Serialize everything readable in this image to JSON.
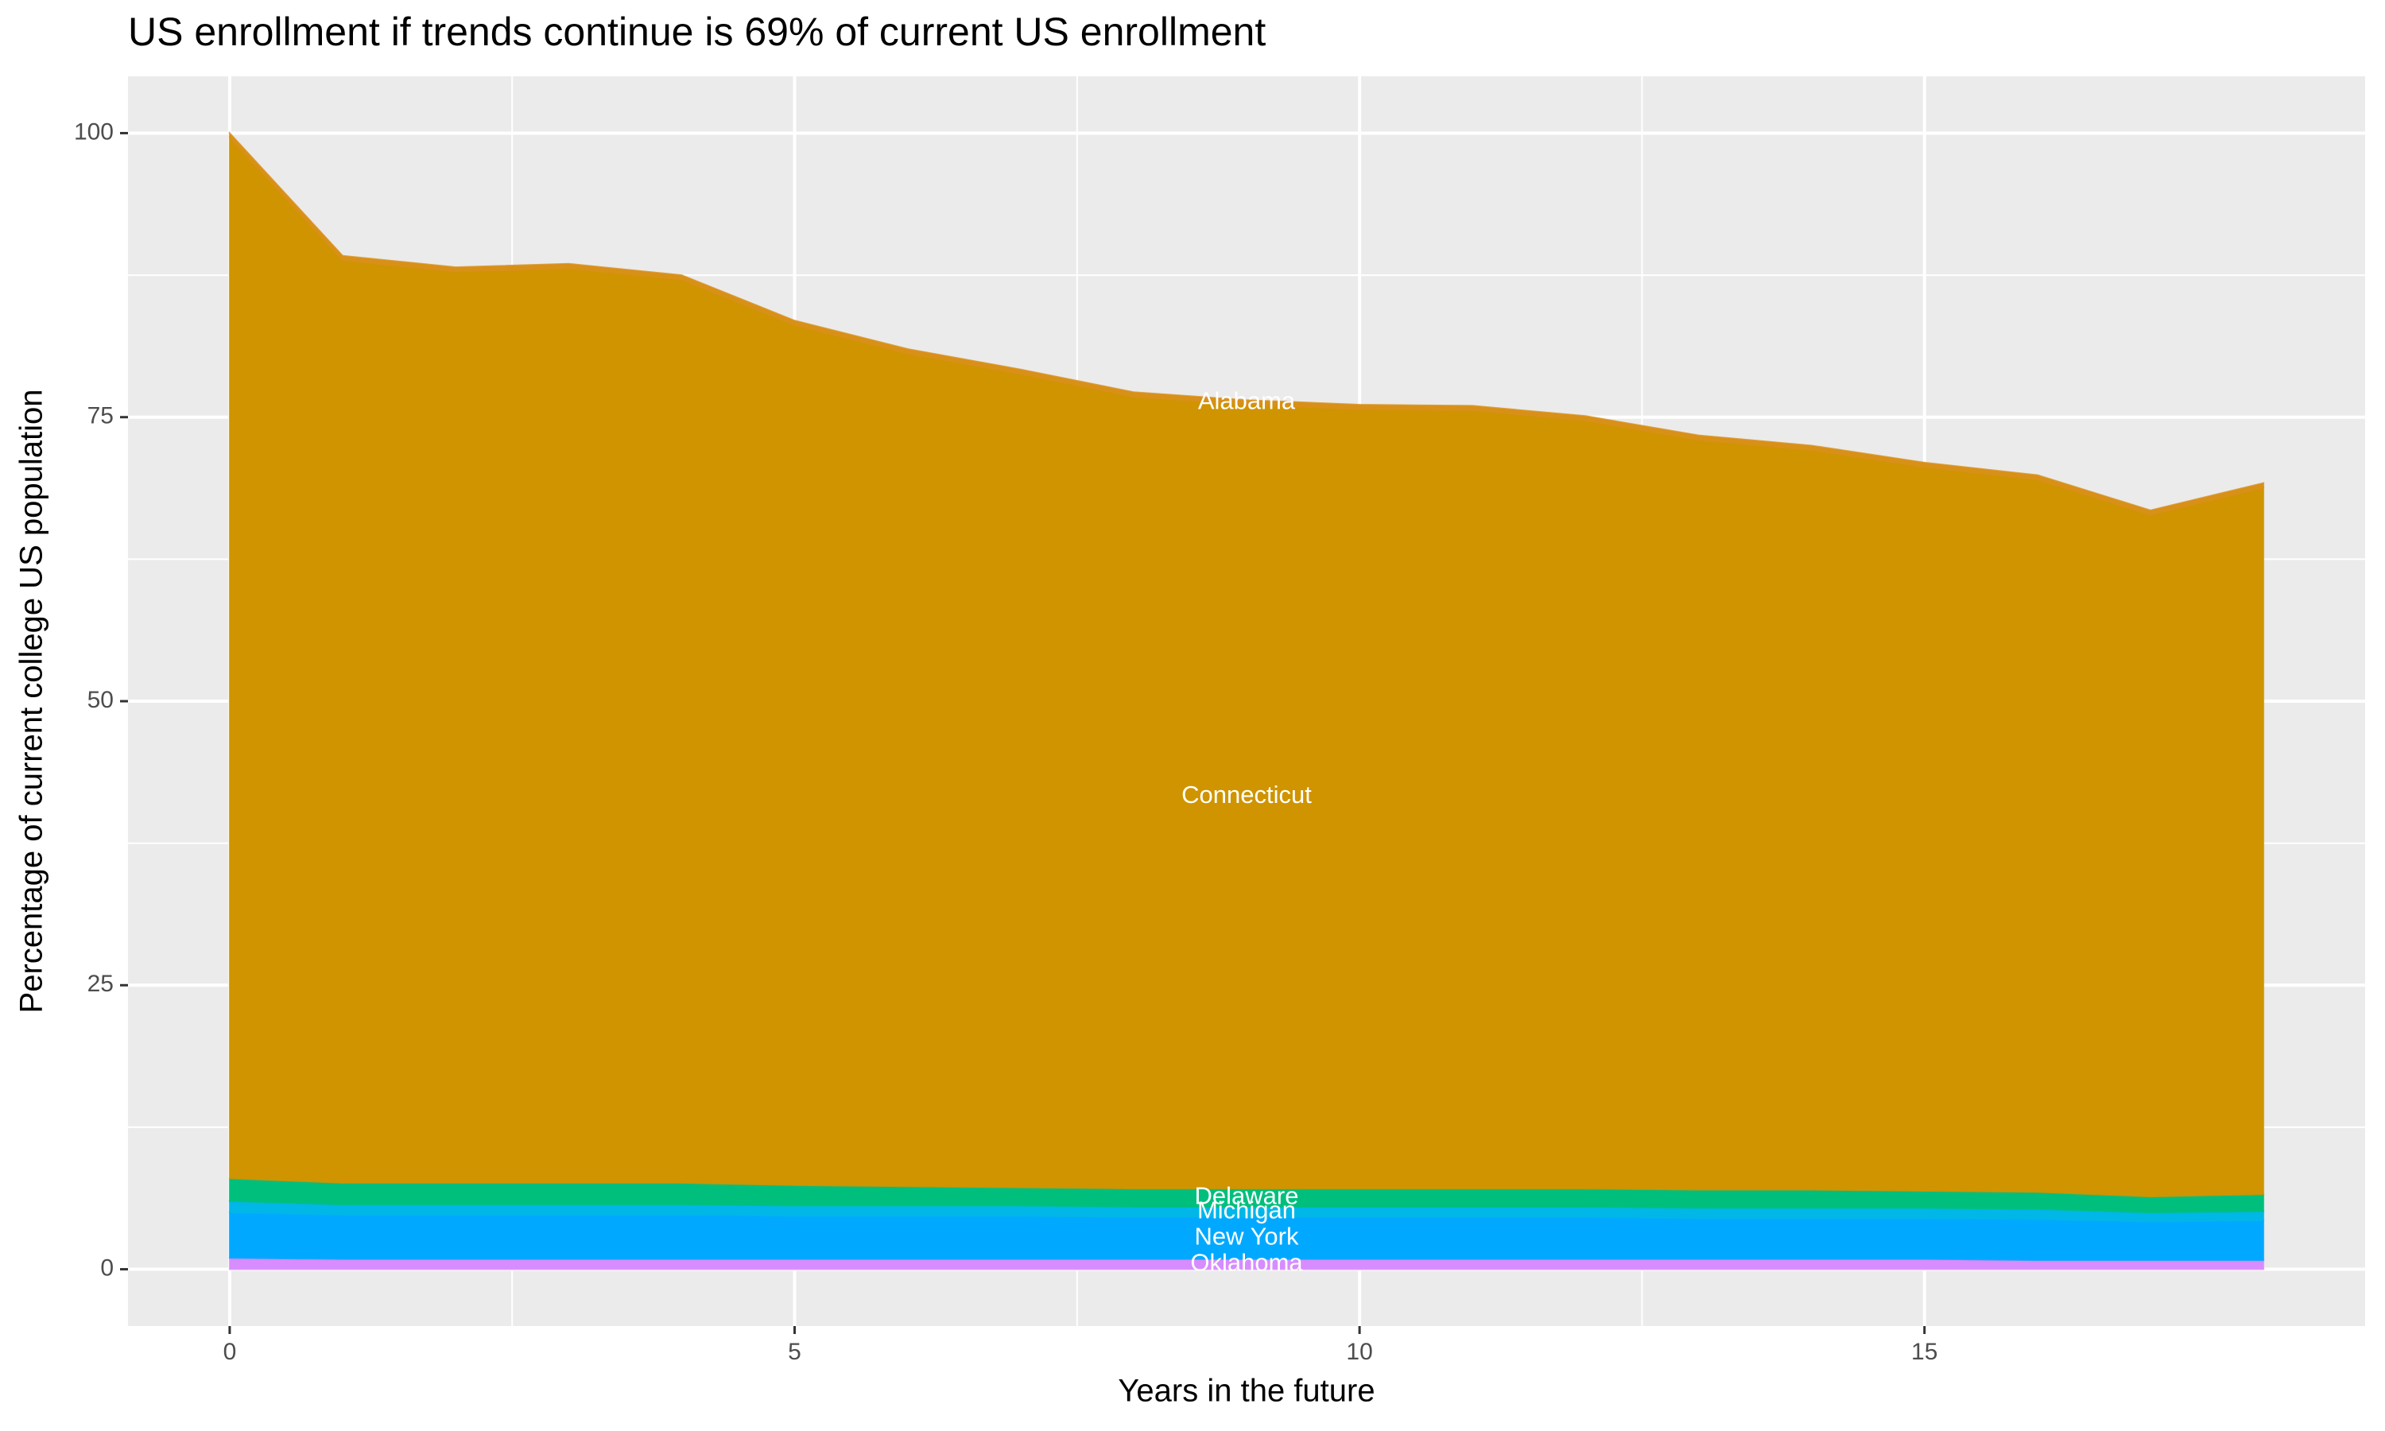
{
  "chart_data": {
    "type": "stacked_area",
    "title": "US enrollment if trends continue is 69% of current US enrollment",
    "x_label": "Years in the future",
    "y_label": "Percentage of current college US population",
    "x": [
      0,
      1,
      2,
      3,
      4,
      5,
      6,
      7,
      8,
      9,
      10,
      11,
      12,
      13,
      14,
      15,
      16,
      17,
      18
    ],
    "series": [
      {
        "name": "Oklahoma",
        "color": "#d78cff",
        "values": [
          1.0,
          0.9,
          0.9,
          0.9,
          0.9,
          0.9,
          0.9,
          0.9,
          0.9,
          0.9,
          0.9,
          0.9,
          0.9,
          0.9,
          0.9,
          0.9,
          0.8,
          0.8,
          0.8
        ]
      },
      {
        "name": "New York",
        "color": "#00a9ff",
        "values": [
          4.0,
          3.9,
          3.9,
          3.9,
          3.9,
          3.8,
          3.8,
          3.8,
          3.7,
          3.7,
          3.7,
          3.7,
          3.7,
          3.6,
          3.6,
          3.6,
          3.6,
          3.4,
          3.5
        ]
      },
      {
        "name": "Michigan",
        "color": "#00b7e8",
        "values": [
          1.0,
          0.9,
          0.9,
          0.9,
          0.9,
          0.9,
          0.9,
          0.9,
          0.9,
          0.9,
          0.9,
          0.9,
          0.9,
          0.9,
          0.9,
          0.9,
          0.9,
          0.8,
          0.8
        ]
      },
      {
        "name": "Delaware",
        "color": "#00bf7d",
        "values": [
          2.0,
          1.9,
          1.9,
          1.9,
          1.9,
          1.8,
          1.7,
          1.6,
          1.6,
          1.6,
          1.6,
          1.6,
          1.6,
          1.6,
          1.6,
          1.5,
          1.5,
          1.4,
          1.5
        ]
      },
      {
        "name": "Connecticut",
        "color": "#cf9400",
        "values": [
          91.6,
          81.2,
          80.2,
          80.5,
          79.5,
          75.7,
          73.3,
          71.6,
          69.7,
          69.0,
          68.6,
          68.5,
          67.6,
          66.0,
          65.1,
          63.7,
          62.7,
          60.0,
          62.2
        ]
      },
      {
        "name": "Alabama",
        "color": "#d89018",
        "values": [
          0.4,
          0.4,
          0.4,
          0.4,
          0.4,
          0.4,
          0.4,
          0.4,
          0.4,
          0.4,
          0.4,
          0.4,
          0.4,
          0.4,
          0.4,
          0.4,
          0.4,
          0.4,
          0.4
        ]
      }
    ],
    "xlim": [
      -0.9,
      18.9
    ],
    "xticks": [
      0,
      5,
      10,
      15
    ],
    "ylim": [
      -5,
      105
    ],
    "yticks": [
      0,
      25,
      50,
      75,
      100
    ],
    "grid": true
  }
}
